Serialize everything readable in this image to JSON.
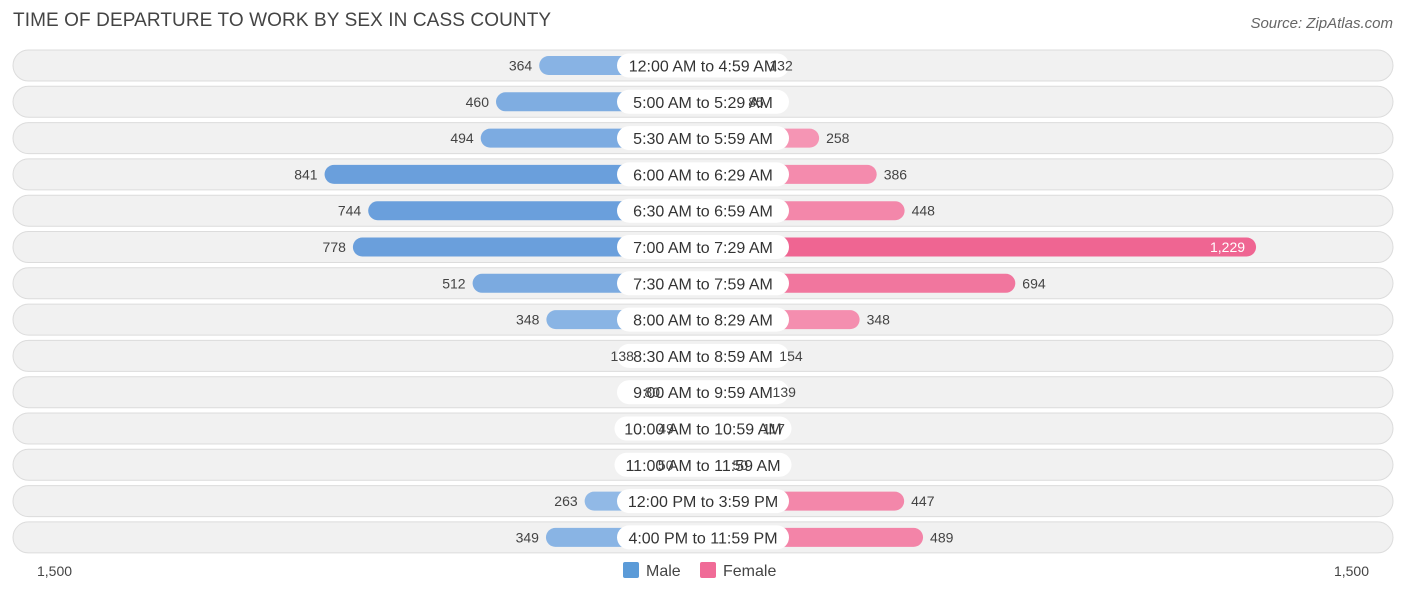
{
  "title": "TIME OF DEPARTURE TO WORK BY SEX IN CASS COUNTY",
  "source": "Source: ZipAtlas.com",
  "colors": {
    "male_light": "#a8c8ec",
    "male_dark": "#6a9fdc",
    "female_light": "#f7a8c2",
    "female_dark": "#ef6592",
    "legend_male": "#5b9bd8",
    "legend_female": "#f06b97"
  },
  "chart_data": {
    "type": "bar",
    "orientation": "horizontal-diverging",
    "title": "TIME OF DEPARTURE TO WORK BY SEX IN CASS COUNTY",
    "categories": [
      "12:00 AM to 4:59 AM",
      "5:00 AM to 5:29 AM",
      "5:30 AM to 5:59 AM",
      "6:00 AM to 6:29 AM",
      "6:30 AM to 6:59 AM",
      "7:00 AM to 7:29 AM",
      "7:30 AM to 7:59 AM",
      "8:00 AM to 8:29 AM",
      "8:30 AM to 8:59 AM",
      "9:00 AM to 9:59 AM",
      "10:00 AM to 10:59 AM",
      "11:00 AM to 11:59 AM",
      "12:00 PM to 3:59 PM",
      "4:00 PM to 11:59 PM"
    ],
    "series": [
      {
        "name": "Male",
        "values": [
          364,
          460,
          494,
          841,
          744,
          778,
          512,
          348,
          138,
          80,
          49,
          50,
          263,
          349
        ],
        "labels": [
          "364",
          "460",
          "494",
          "841",
          "744",
          "778",
          "512",
          "348",
          "138",
          "80",
          "49",
          "50",
          "263",
          "349"
        ]
      },
      {
        "name": "Female",
        "values": [
          132,
          85,
          258,
          386,
          448,
          1229,
          694,
          348,
          154,
          139,
          117,
          50,
          447,
          489
        ],
        "labels": [
          "132",
          "85",
          "258",
          "386",
          "448",
          "1,229",
          "694",
          "348",
          "154",
          "139",
          "117",
          "50",
          "447",
          "489"
        ]
      }
    ],
    "axis": {
      "min_label": "1,500",
      "max_label": "1,500",
      "max": 1500
    },
    "legend": {
      "position": "bottom-center",
      "entries": [
        "Male",
        "Female"
      ]
    }
  }
}
